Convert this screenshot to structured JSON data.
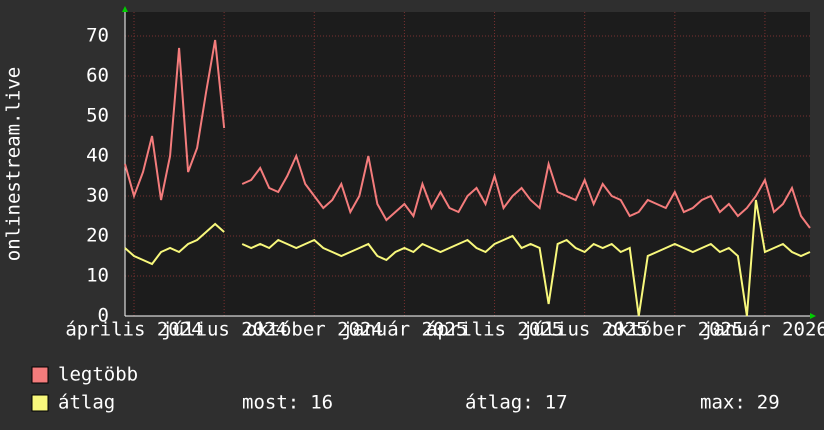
{
  "chart_data": {
    "type": "line",
    "y_label": "onlinestream.live",
    "xlim": [
      0,
      76
    ],
    "xticks": [
      {
        "value": 1,
        "label": "április 2024"
      },
      {
        "value": 11,
        "label": "július 2024"
      },
      {
        "value": 21,
        "label": "október 2024"
      },
      {
        "value": 31,
        "label": "január 2025"
      },
      {
        "value": 41,
        "label": "április 2025"
      },
      {
        "value": 51,
        "label": "július 2025"
      },
      {
        "value": 61,
        "label": "október 2025"
      },
      {
        "value": 71,
        "label": "január 2026"
      }
    ],
    "ylim": [
      0,
      76
    ],
    "yticks": [
      0,
      10,
      20,
      30,
      40,
      50,
      60,
      70
    ],
    "grid": true,
    "series": [
      {
        "name": "legtöbb",
        "color": "#f47c7c",
        "values": [
          38,
          30,
          36,
          45,
          29,
          40,
          67,
          36,
          42,
          56,
          69,
          47,
          null,
          33,
          34,
          37,
          32,
          31,
          35,
          40,
          33,
          30,
          27,
          29,
          33,
          26,
          30,
          40,
          28,
          24,
          26,
          28,
          25,
          33,
          27,
          31,
          27,
          26,
          30,
          32,
          28,
          35,
          27,
          30,
          32,
          29,
          27,
          38,
          31,
          30,
          29,
          34,
          28,
          33,
          30,
          29,
          25,
          26,
          29,
          28,
          27,
          31,
          26,
          27,
          29,
          30,
          26,
          28,
          25,
          27,
          30,
          34,
          26,
          28,
          32,
          25,
          22
        ]
      },
      {
        "name": "átlag",
        "color": "#f8f87c",
        "values": [
          17,
          15,
          14,
          13,
          16,
          17,
          16,
          18,
          19,
          21,
          23,
          21,
          null,
          18,
          17,
          18,
          17,
          19,
          18,
          17,
          18,
          19,
          17,
          16,
          15,
          16,
          17,
          18,
          15,
          14,
          16,
          17,
          16,
          18,
          17,
          16,
          17,
          18,
          19,
          17,
          16,
          18,
          19,
          20,
          17,
          18,
          17,
          3,
          18,
          19,
          17,
          16,
          18,
          17,
          18,
          16,
          17,
          0,
          15,
          16,
          17,
          18,
          17,
          16,
          17,
          18,
          16,
          17,
          15,
          0,
          29,
          16,
          17,
          18,
          16,
          15,
          16
        ]
      }
    ],
    "stats": [
      {
        "label": "most:",
        "value": 16
      },
      {
        "label": "átlag:",
        "value": 17
      },
      {
        "label": "max:",
        "value": 29
      }
    ]
  }
}
